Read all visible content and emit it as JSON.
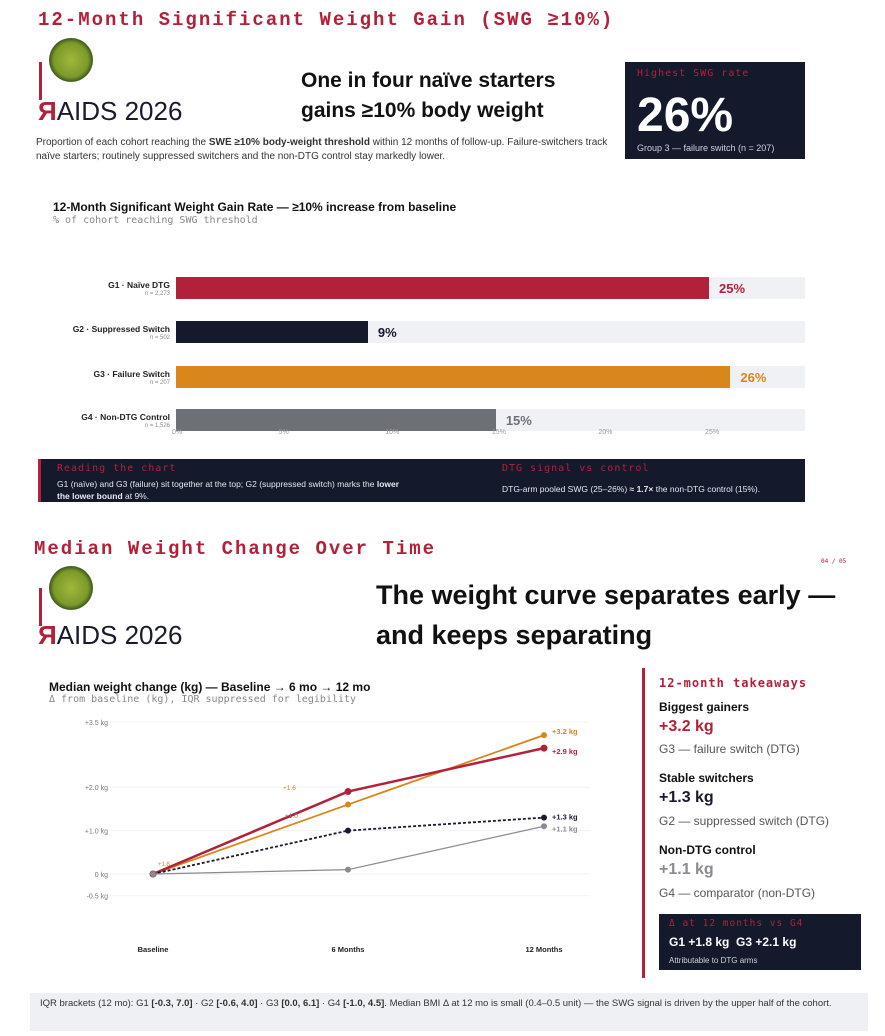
{
  "slide1": {
    "title": "12-Month Significant Weight Gain (SWG ≥10%)",
    "logo": {
      "mark": "Я",
      "text": "AIDS 2026"
    },
    "headline_line1": "One in four naïve starters",
    "headline_line2": "gains ≥10% body weight",
    "kpi": {
      "label": "Highest SWG rate",
      "value": "26%",
      "sub": "Group 3 — failure switch (n = 207)"
    },
    "intro_pre": "Proportion of each cohort reaching the ",
    "intro_bold": "SWE ≥10% body-weight threshold",
    "intro_post": " within 12 months of follow-up. Failure-switchers track naïve starters; routinely suppressed switchers and the non-DTG control stay markedly lower.",
    "chart_title": "12-Month Significant Weight Gain Rate — ≥10% increase from baseline",
    "chart_sub": "% of cohort reaching SWG threshold",
    "strip": {
      "left_h": "Reading the chart",
      "left_t_pre": "G1 (naïve) and G3 (failure) sit together at the top; G2 (suppressed switch) marks the ",
      "left_t_bold1": "lower",
      "left_t_line2_bold": "the lower bound",
      "left_t_line2_post": " at 9%.",
      "right_h": "DTG signal vs control",
      "right_t_pre": "DTG-arm pooled SWG (25–26%) ",
      "right_t_bold": "≈ 1.7×",
      "right_t_post": " the non-DTG control (15%)."
    }
  },
  "slide2": {
    "title": "Median Weight Change Over Time",
    "page": "04 / 05",
    "logo": {
      "mark": "Я",
      "text": "AIDS 2026"
    },
    "headline_line1": "The weight curve separates early —",
    "headline_line2": "and keeps separating",
    "chart_title": "Median weight change (kg) — Baseline → 6 mo → 12 mo",
    "chart_sub": "Δ from baseline (kg), IQR suppressed for legibility",
    "takeaways": {
      "heading": "12-month takeaways",
      "items": [
        {
          "label": "Biggest gainers",
          "value": "+3.2 kg",
          "desc": "G3 — failure switch (DTG)",
          "color": "#b3203a"
        },
        {
          "label": "Stable switchers",
          "value": "+1.3 kg",
          "desc": "G2 — suppressed switch (DTG)",
          "color": "#1a1a2e"
        },
        {
          "label": "Non-DTG control",
          "value": "+1.1 kg",
          "desc": "G4 — comparator (non-DTG)",
          "color": "#8a8a92"
        }
      ],
      "delta_h": "Δ at 12 months vs G4",
      "delta_v": "G1 +1.8 kg  G3 +2.1 kg",
      "delta_s": "Attributable to DTG arms"
    },
    "footnote_pre": "IQR brackets (12 mo): G1 ",
    "g1_iqr": "[-0.3, 7.0]",
    "mid1": " · G2 ",
    "g2_iqr": "[-0.6, 4.0]",
    "mid2": " · G3 ",
    "g3_iqr": "[0.0, 6.1]",
    "mid3": " · G4 ",
    "g4_iqr": "[-1.0, 4.5]",
    "footnote_post": ". Median BMI Δ at 12 mo is small (0.4–0.5 unit) — the SWG signal is driven by the upper half of the cohort."
  },
  "chart_data": [
    {
      "type": "bar",
      "orientation": "horizontal",
      "categories": [
        "G1 · Naïve DTG",
        "G2 · Suppressed Switch",
        "G3 · Failure Switch",
        "G4 · Non-DTG Control"
      ],
      "n_labels": [
        "n = 2,273",
        "n = 502",
        "n = 207",
        "n = 1,526"
      ],
      "values": [
        25,
        9,
        26,
        15
      ],
      "value_labels": [
        "25%",
        "9%",
        "26%",
        "15%"
      ],
      "colors": [
        "#b3203a",
        "#141a2c",
        "#d9861a",
        "#6e7077"
      ],
      "x_ticks": [
        "0%",
        "5%",
        "10%",
        "15%",
        "20%",
        "25%"
      ],
      "xlim": [
        0,
        29.5
      ]
    },
    {
      "type": "line",
      "x": [
        "Baseline",
        "6 Months",
        "12 Months"
      ],
      "y_ticks": [
        "+3.5 kg",
        "+2.0 kg",
        "+1.0 kg",
        "0 kg",
        "-0.5 kg"
      ],
      "y_tick_values": [
        3.5,
        2.0,
        1.0,
        0,
        -0.5
      ],
      "series": [
        {
          "values": [
            0,
            1.6,
            3.2
          ],
          "color": "#d9861a",
          "dash": false,
          "end_label": "+3.2 kg",
          "mid_label": "+1.6"
        },
        {
          "values": [
            0,
            1.9,
            2.9
          ],
          "color": "#b3203a",
          "dash": false,
          "end_label": "+2.9 kg",
          "mid_label": ""
        },
        {
          "values": [
            0,
            1.0,
            1.3
          ],
          "color": "#1a1a2e",
          "dash": true,
          "end_label": "+1.3 kg",
          "mid_label": "+1.0"
        },
        {
          "values": [
            0,
            0.1,
            1.1
          ],
          "color": "#8a8a92",
          "dash": false,
          "end_label": "+1.1 kg",
          "mid_label": ""
        }
      ],
      "baseline_label": "+1.8",
      "ylim": [
        -0.5,
        3.5
      ]
    }
  ]
}
